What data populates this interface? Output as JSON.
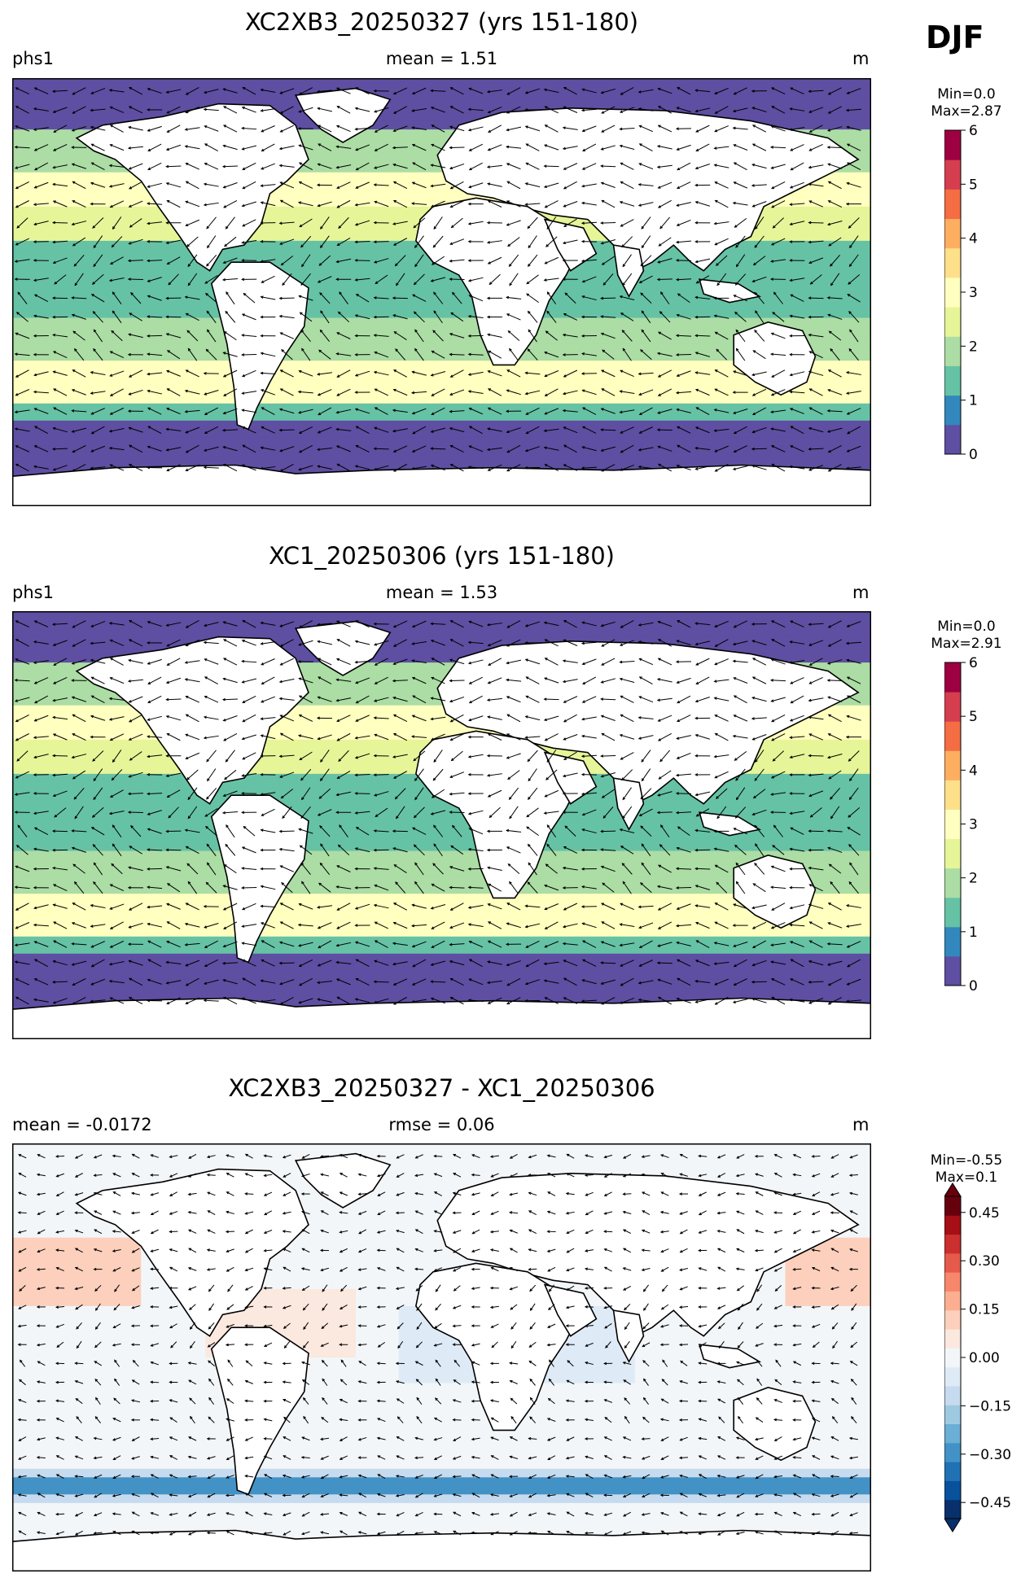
{
  "season_label": "DJF",
  "panels": [
    {
      "id": "panel-1",
      "title": "XC2XB3_20250327 (yrs 151-180)",
      "left_label": "phs1",
      "center_label": "mean = 1.51",
      "units": "m",
      "colorbar": {
        "min_label": "Min=0.0",
        "max_label": "Max=2.87",
        "ticks": [
          "0",
          "1",
          "2",
          "3",
          "4",
          "5",
          "6"
        ],
        "range": [
          0,
          6
        ],
        "colors": [
          "#5e4fa2",
          "#3288bd",
          "#66c2a5",
          "#abdda4",
          "#e6f598",
          "#ffffbf",
          "#fee08b",
          "#fdae61",
          "#f46d43",
          "#d53e4f",
          "#9e0142"
        ]
      }
    },
    {
      "id": "panel-2",
      "title": "XC1_20250306 (yrs 151-180)",
      "left_label": "phs1",
      "center_label": "mean = 1.53",
      "units": "m",
      "colorbar": {
        "min_label": "Min=0.0",
        "max_label": "Max=2.91",
        "ticks": [
          "0",
          "1",
          "2",
          "3",
          "4",
          "5",
          "6"
        ],
        "range": [
          0,
          6
        ],
        "colors": [
          "#5e4fa2",
          "#3288bd",
          "#66c2a5",
          "#abdda4",
          "#e6f598",
          "#ffffbf",
          "#fee08b",
          "#fdae61",
          "#f46d43",
          "#d53e4f",
          "#9e0142"
        ]
      }
    },
    {
      "id": "panel-3",
      "title": "XC2XB3_20250327 - XC1_20250306",
      "left_label": "mean = -0.0172",
      "center_label": "rmse = 0.06",
      "units": "m",
      "colorbar": {
        "min_label": "Min=-0.55",
        "max_label": "Max=0.1",
        "ticks": [
          "0.45",
          "0.30",
          "0.15",
          "0.00",
          "−0.15",
          "−0.30",
          "−0.45"
        ],
        "range": [
          -0.5,
          0.5
        ],
        "colors": [
          "#08306b",
          "#08519c",
          "#2171b5",
          "#4292c6",
          "#6baed6",
          "#9ecae1",
          "#c6dbef",
          "#deebf7",
          "#f2f6f9",
          "#fbe8de",
          "#fcd0bc",
          "#fcae91",
          "#f7876b",
          "#e55a4a",
          "#cb2f2f",
          "#a50f15",
          "#67000d"
        ]
      }
    }
  ]
}
